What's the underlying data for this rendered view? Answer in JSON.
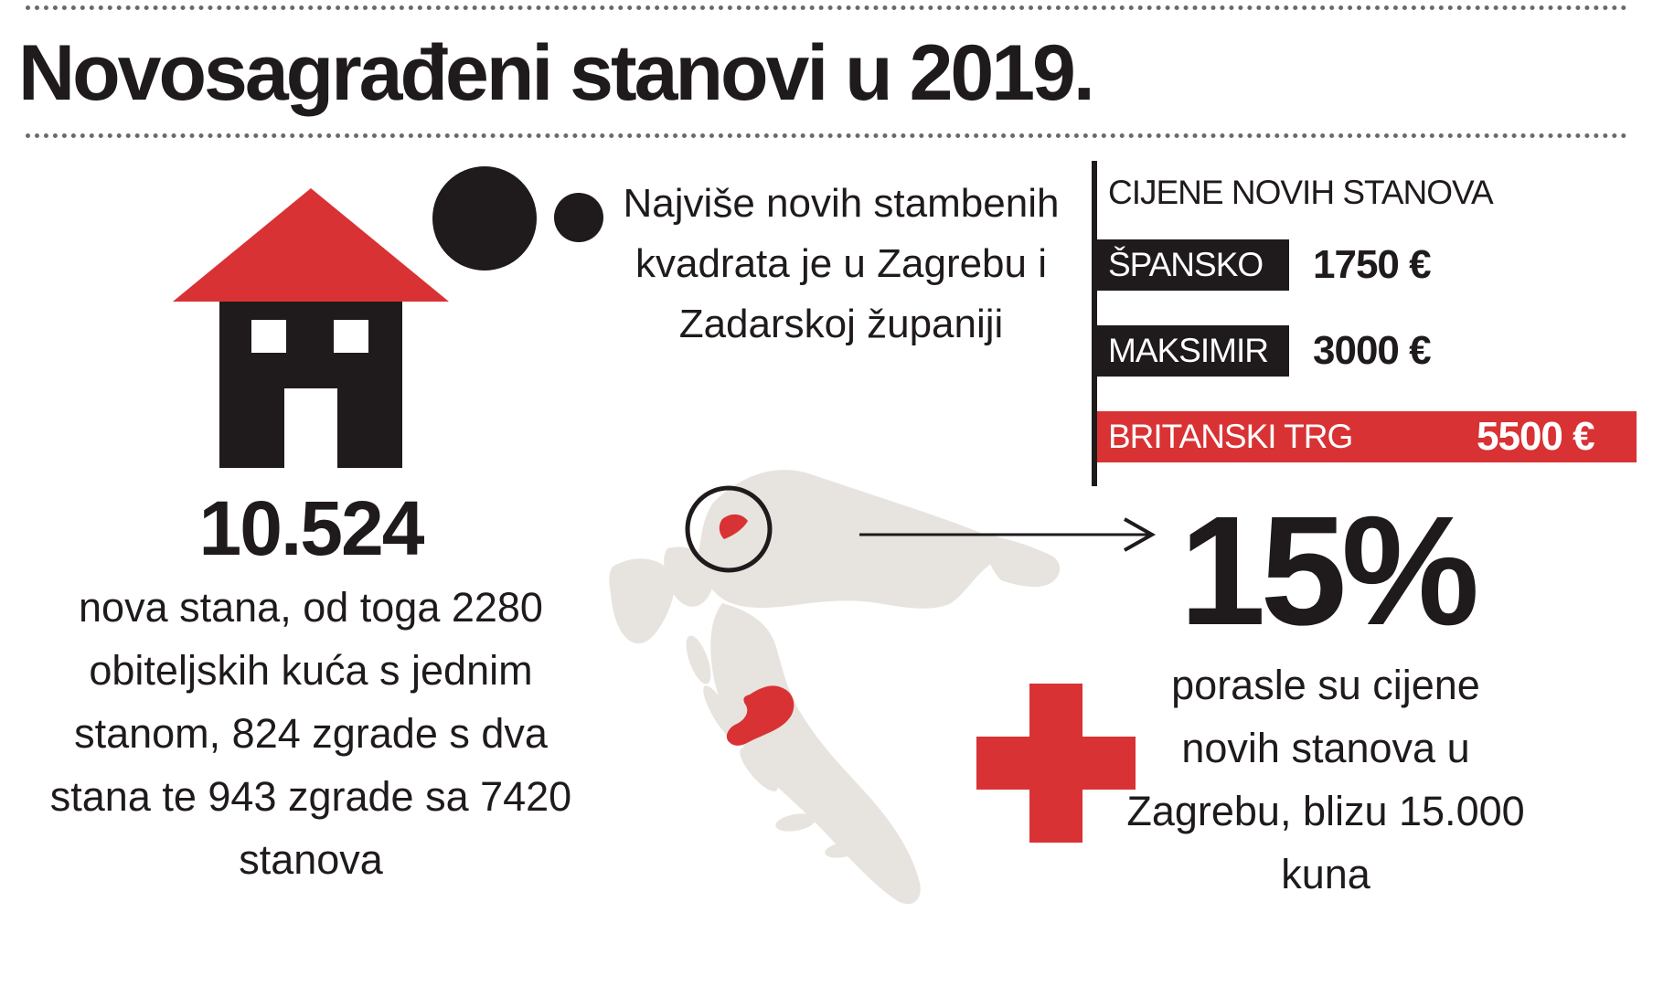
{
  "headline": "Novosagrađeni stanovi u 2019.",
  "housing_stat": {
    "number": "10.524",
    "description": "nova stana, od toga 2280 obiteljskih kuća s jednim stanom, 824 zgrade s dva stana te 943 zgrade sa 7420 stanova"
  },
  "zagreb_note": "Najviše novih stambenih kvadrata je u Zagrebu i Zadarskoj županiji",
  "prices": {
    "title": "CIJENE NOVIH STANOVA",
    "items": [
      {
        "name": "ŠPANSKO",
        "value": "1750 €",
        "amount": 1750,
        "color": "#1f1a1b"
      },
      {
        "name": "MAKSIMIR",
        "value": "3000 €",
        "amount": 3000,
        "color": "#1f1a1b"
      },
      {
        "name": "BRITANSKI TRG",
        "value": "5500 €",
        "amount": 5500,
        "color": "#d93234"
      }
    ]
  },
  "price_growth": {
    "percent": "15%",
    "description": "porasle su cijene novih stanova u Zagrebu,  blizu 15.000 kuna"
  },
  "icons": {
    "house": "house-icon",
    "bubbles": "thought-bubble-icon",
    "plus": "plus-icon",
    "map": "croatia-map",
    "arrow": "arrow-right-icon"
  },
  "colors": {
    "accent": "#d93234",
    "text": "#1f1a1b",
    "map_fill": "#e7e4df"
  }
}
